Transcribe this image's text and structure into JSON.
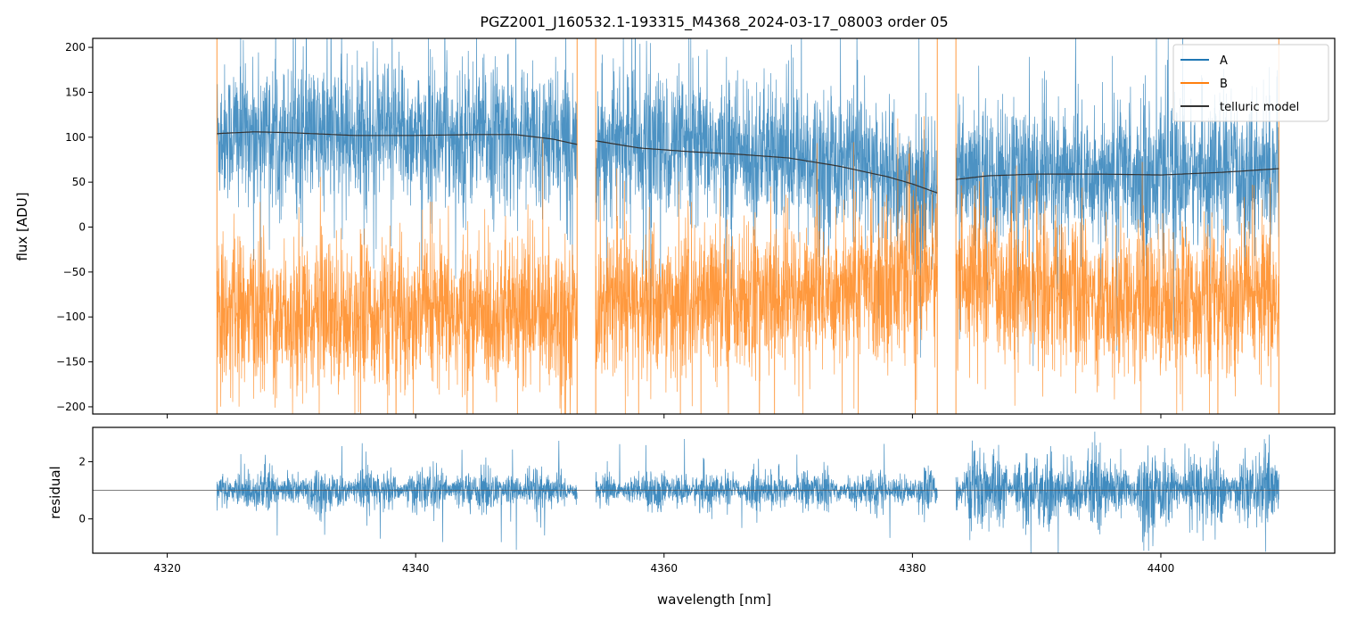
{
  "chart_data": [
    {
      "type": "line",
      "title": "PGZ2001_J160532.1-193315_M4368_2024-03-17_08003  order 05",
      "xlabel": "",
      "ylabel": "flux [ADU]",
      "xlim": [
        4314,
        4414
      ],
      "ylim": [
        -208,
        210
      ],
      "xticks": [
        4320,
        4340,
        4360,
        4380,
        4400
      ],
      "yticks": [
        -200,
        -150,
        -100,
        -50,
        0,
        50,
        100,
        150,
        200
      ],
      "ytick_labels": [
        "−200",
        "−150",
        "−100",
        "−50",
        "0",
        "50",
        "100",
        "150",
        "200"
      ],
      "legend": {
        "position": "top-right",
        "entries": [
          "A",
          "B",
          "telluric model"
        ]
      },
      "segments": [
        [
          4324,
          4353
        ],
        [
          4354.5,
          4382
        ],
        [
          4383.5,
          4409.5
        ]
      ],
      "series": [
        {
          "name": "A",
          "color": "#1f77b4",
          "noise_sigma": 40,
          "baseline": {
            "x": [
              4324,
              4327,
              4335,
              4347,
              4353,
              4354.5,
              4365,
              4375,
              4382,
              4383.5,
              4390,
              4400,
              4409.5
            ],
            "y": [
              104,
              106,
              102,
              103,
              92,
              96,
              85,
              72,
              38,
              53,
              59,
              59,
              65
            ]
          }
        },
        {
          "name": "B",
          "color": "#ff7f0e",
          "noise_sigma": 42,
          "baseline": {
            "x": [
              4324,
              4340,
              4353,
              4354.5,
              4370,
              4382,
              4383.5,
              4395,
              4409.5
            ],
            "y": [
              -95,
              -100,
              -95,
              -90,
              -80,
              -50,
              -55,
              -80,
              -85
            ]
          }
        },
        {
          "name": "telluric model",
          "color": "#333333",
          "x": [
            4324,
            4327,
            4330,
            4335,
            4340,
            4345,
            4348,
            4351,
            4353,
            4354.5,
            4358,
            4362,
            4366,
            4370,
            4374,
            4378,
            4380,
            4382,
            4383.5,
            4386,
            4390,
            4395,
            4400,
            4405,
            4409.5
          ],
          "y": [
            104,
            106,
            105,
            102,
            102,
            103,
            103,
            98,
            92,
            96,
            88,
            84,
            81,
            77,
            68,
            56,
            48,
            38,
            53,
            57,
            59,
            59,
            58,
            61,
            65
          ]
        }
      ]
    },
    {
      "type": "line",
      "title": "",
      "xlabel": "wavelength [nm]",
      "ylabel": "residual",
      "xlim": [
        4314,
        4414
      ],
      "ylim": [
        -1.2,
        3.2
      ],
      "xticks": [
        4320,
        4340,
        4360,
        4380,
        4400
      ],
      "yticks": [
        0,
        2
      ],
      "reference_line": 1.0,
      "segments": [
        [
          4324,
          4353
        ],
        [
          4354.5,
          4382
        ],
        [
          4383.5,
          4409.5
        ]
      ],
      "series": [
        {
          "name": "residual",
          "color": "#1f77b4",
          "baseline_value": 1.0,
          "noise_sigma_segments": [
            0.45,
            0.4,
            0.8
          ]
        }
      ]
    }
  ]
}
